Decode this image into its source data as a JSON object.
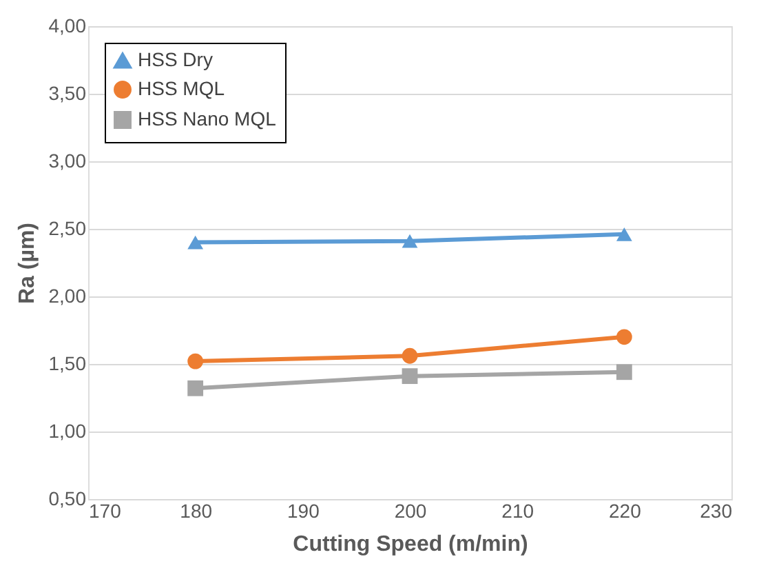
{
  "chart_data": {
    "type": "line",
    "xlabel": "Cutting Speed (m/min)",
    "ylabel": "Ra (µm)",
    "x": [
      180,
      200,
      220
    ],
    "series": [
      {
        "name": "HSS Dry",
        "color": "#5b9bd5",
        "marker": "triangle",
        "values": [
          2.4,
          2.41,
          2.46
        ]
      },
      {
        "name": "HSS MQL",
        "color": "#ed7d31",
        "marker": "circle",
        "values": [
          1.52,
          1.56,
          1.7
        ]
      },
      {
        "name": "HSS Nano MQL",
        "color": "#a5a5a5",
        "marker": "square",
        "values": [
          1.32,
          1.41,
          1.44
        ]
      }
    ],
    "xlim": [
      170,
      230
    ],
    "xticks": [
      170,
      180,
      190,
      200,
      210,
      220,
      230
    ],
    "ylim": [
      0.5,
      4.0
    ],
    "yticks": [
      {
        "value": 0.5,
        "label": "0,50"
      },
      {
        "value": 1.0,
        "label": "1,00"
      },
      {
        "value": 1.5,
        "label": "1,50"
      },
      {
        "value": 2.0,
        "label": "2,00"
      },
      {
        "value": 2.5,
        "label": "2,50"
      },
      {
        "value": 3.0,
        "label": "3,00"
      },
      {
        "value": 3.5,
        "label": "3,50"
      },
      {
        "value": 4.0,
        "label": "4,00"
      }
    ],
    "grid": "y",
    "legend": "top left",
    "line_style": "solid"
  }
}
